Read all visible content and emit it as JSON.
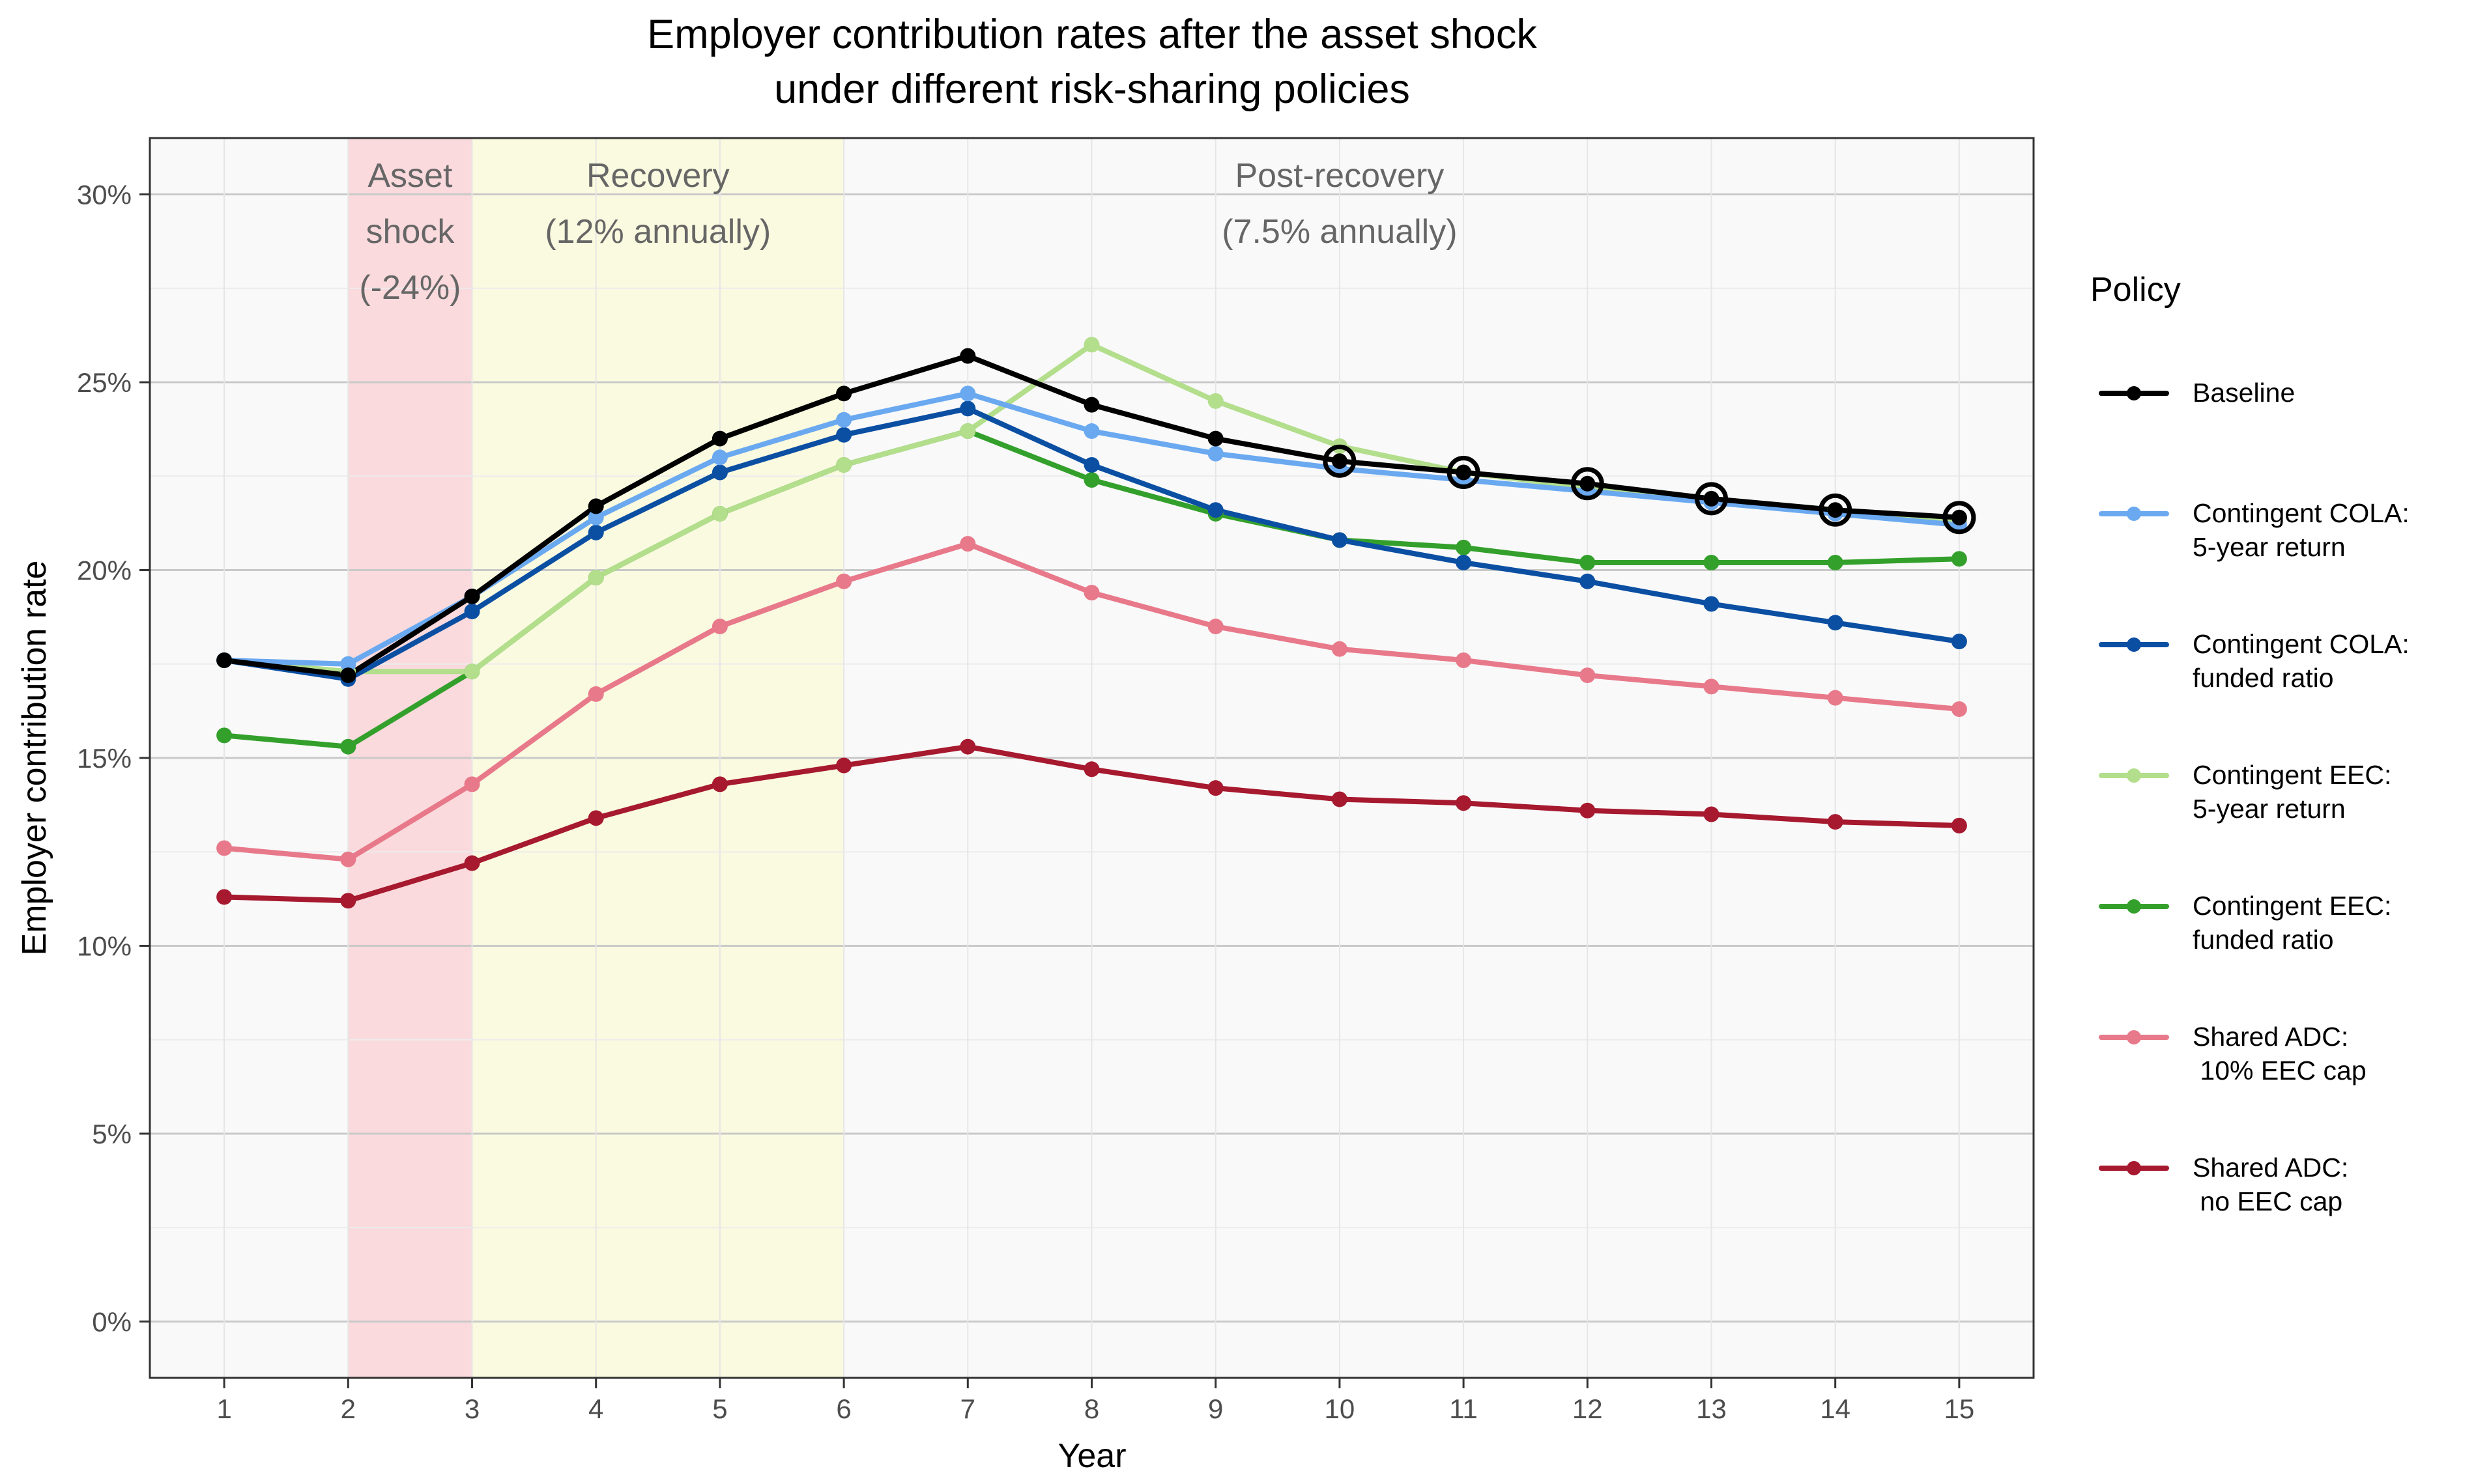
{
  "chart_data": {
    "type": "line",
    "title_lines": [
      "Employer contribution rates after the asset shock",
      "under different risk-sharing policies"
    ],
    "xlabel": "Year",
    "ylabel": "Employer contribution rate",
    "x": [
      1,
      2,
      3,
      4,
      5,
      6,
      7,
      8,
      9,
      10,
      11,
      12,
      13,
      14,
      15
    ],
    "xlim": [
      0.4,
      15.6
    ],
    "ylim": [
      -1.5,
      31.5
    ],
    "yticks": [
      0,
      5,
      10,
      15,
      20,
      25,
      30
    ],
    "ytick_labels": [
      "0%",
      "5%",
      "10%",
      "15%",
      "20%",
      "25%",
      "30%"
    ],
    "grid": true,
    "legend": {
      "title": "Policy",
      "position": "right",
      "entries": [
        [
          "Baseline"
        ],
        [
          "Contingent COLA:",
          "5-year return"
        ],
        [
          "Contingent COLA:",
          "funded ratio"
        ],
        [
          "Contingent EEC:",
          "5-year return"
        ],
        [
          "Contingent EEC:",
          "funded ratio"
        ],
        [
          "Shared ADC:",
          " 10% EEC cap"
        ],
        [
          "Shared ADC:",
          " no EEC cap"
        ]
      ]
    },
    "regions": [
      {
        "x0": 2,
        "x1": 3,
        "color": "#fadadd",
        "label_lines": [
          "Asset",
          "shock",
          "(-24%)"
        ],
        "label_x": 2.5
      },
      {
        "x0": 3,
        "x1": 6,
        "color": "#fafae0",
        "label_lines": [
          "Recovery",
          "(12% annually)"
        ],
        "label_x": 4.5
      },
      {
        "x0": 6,
        "x1": 15.6,
        "color": "none",
        "label_lines": [
          "Post-recovery",
          "(7.5% annually)"
        ],
        "label_x": 10
      }
    ],
    "series": [
      {
        "name": "Baseline",
        "color": "#000000",
        "values": [
          17.6,
          17.2,
          19.3,
          21.7,
          23.5,
          24.7,
          25.7,
          24.4,
          23.5,
          22.9,
          22.6,
          22.3,
          21.9,
          21.6,
          21.4
        ]
      },
      {
        "name": "Contingent COLA: 5-year return",
        "color": "#6aa9f0",
        "values": [
          17.6,
          17.5,
          19.3,
          21.4,
          23.0,
          24.0,
          24.7,
          23.7,
          23.1,
          22.7,
          22.4,
          22.1,
          21.8,
          21.5,
          21.2
        ]
      },
      {
        "name": "Contingent COLA: funded ratio",
        "color": "#0b4fa3",
        "values": [
          17.6,
          17.1,
          18.9,
          21.0,
          22.6,
          23.6,
          24.3,
          22.8,
          21.6,
          20.8,
          20.2,
          19.7,
          19.1,
          18.6,
          18.1
        ]
      },
      {
        "name": "Contingent EEC: 5-year return",
        "color": "#b3de8c",
        "values": [
          17.6,
          17.3,
          17.3,
          19.8,
          21.5,
          22.8,
          23.7,
          26.0,
          24.5,
          23.3,
          22.6,
          22.2,
          21.9,
          21.6,
          21.3
        ]
      },
      {
        "name": "Contingent EEC: funded ratio",
        "color": "#34a02c",
        "values": [
          15.6,
          15.3,
          17.3,
          19.8,
          21.5,
          22.8,
          23.7,
          22.4,
          21.5,
          20.8,
          20.6,
          20.2,
          20.2,
          20.2,
          20.3
        ]
      },
      {
        "name": "Shared ADC: 10% EEC cap",
        "color": "#e8798a",
        "values": [
          12.6,
          12.3,
          14.3,
          16.7,
          18.5,
          19.7,
          20.7,
          19.4,
          18.5,
          17.9,
          17.6,
          17.2,
          16.9,
          16.6,
          16.3
        ]
      },
      {
        "name": "Shared ADC: no EEC cap",
        "color": "#a6192e",
        "values": [
          11.3,
          11.2,
          12.2,
          13.4,
          14.3,
          14.8,
          15.3,
          14.7,
          14.2,
          13.9,
          13.8,
          13.6,
          13.5,
          13.3,
          13.2
        ]
      }
    ]
  }
}
